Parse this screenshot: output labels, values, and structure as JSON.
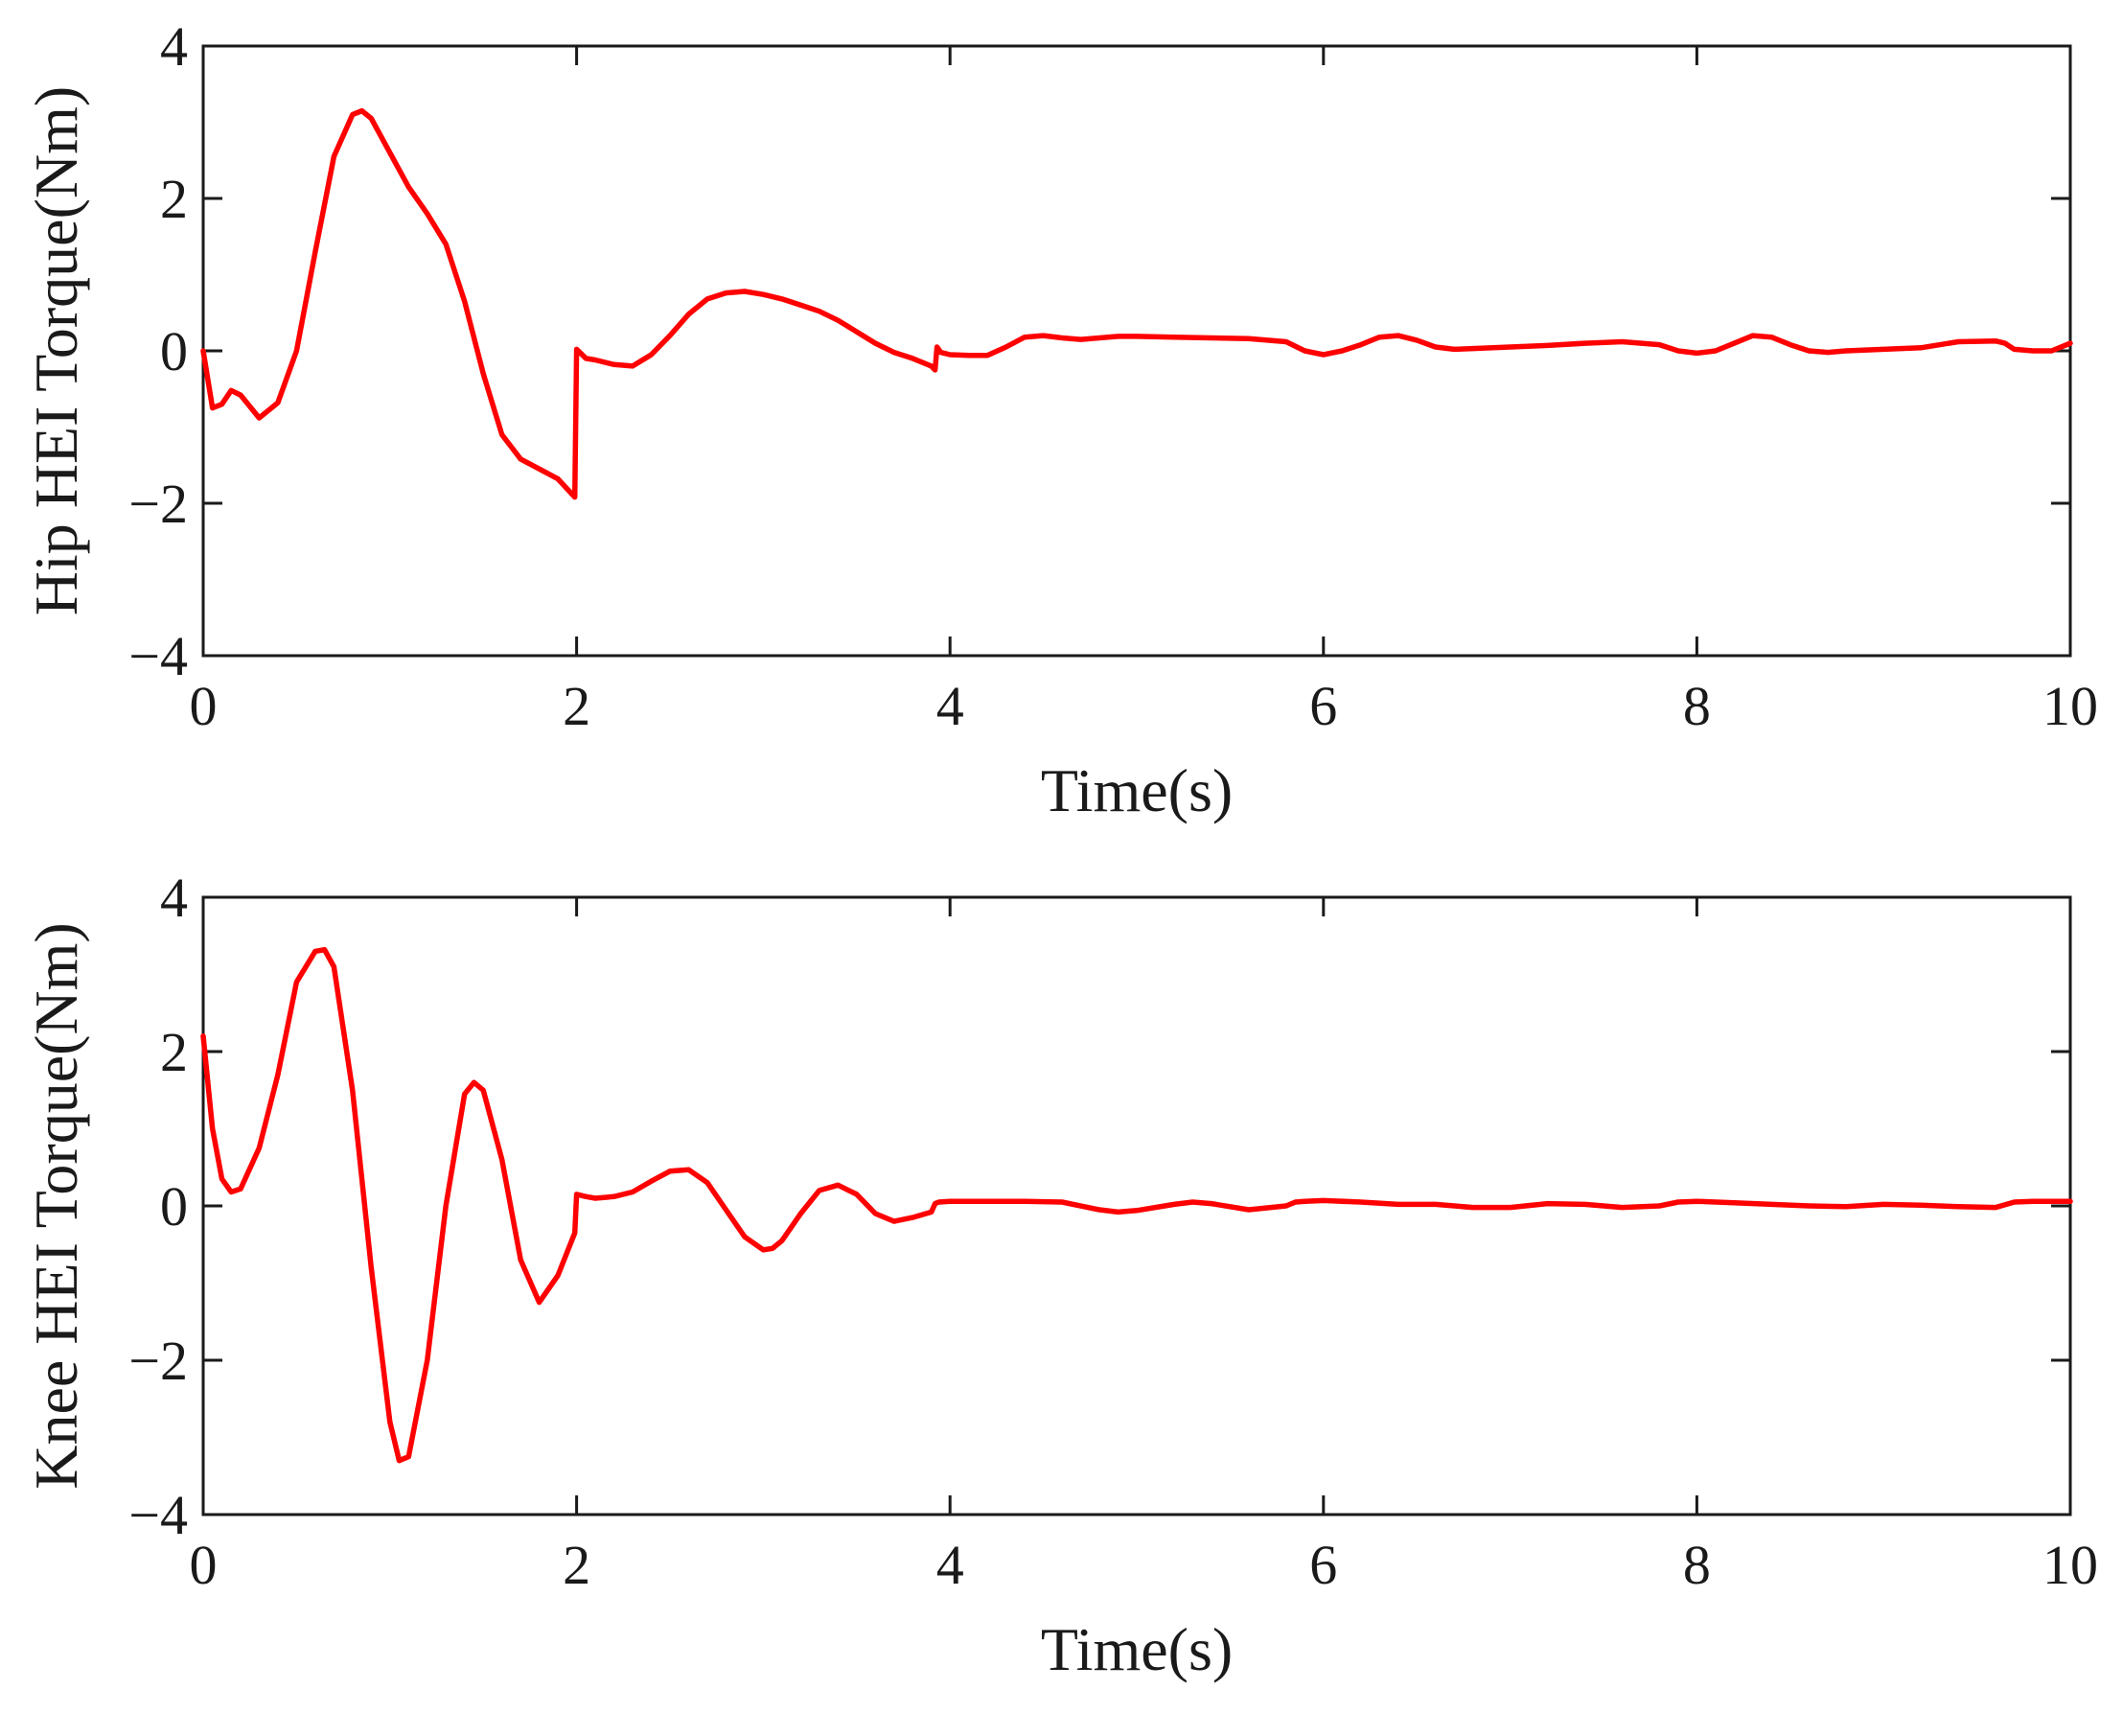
{
  "chart_data": [
    {
      "type": "line",
      "title": "",
      "xlabel": "Time(s)",
      "ylabel": "Hip HEI Torque(Nm)",
      "xlim": [
        0,
        10
      ],
      "ylim": [
        -4,
        4
      ],
      "xticks": [
        "0",
        "2",
        "4",
        "6",
        "8",
        "10"
      ],
      "yticks": [
        "4",
        "2",
        "0",
        "−2",
        "−4"
      ],
      "grid": false,
      "color": "#ff0000",
      "series": [
        {
          "x": [
            0,
            0.05,
            0.1,
            0.15,
            0.2,
            0.3,
            0.4,
            0.5,
            0.6,
            0.7,
            0.8,
            0.85,
            0.9,
            1.0,
            1.1,
            1.2,
            1.3,
            1.4,
            1.5,
            1.6,
            1.7,
            1.8,
            1.9,
            1.99,
            2.0,
            2.05,
            2.1,
            2.2,
            2.3,
            2.4,
            2.5,
            2.6,
            2.7,
            2.8,
            2.9,
            3.0,
            3.1,
            3.2,
            3.3,
            3.4,
            3.5,
            3.6,
            3.7,
            3.8,
            3.9,
            3.92,
            3.93,
            3.95,
            4.0,
            4.1,
            4.2,
            4.3,
            4.4,
            4.5,
            4.6,
            4.7,
            4.8,
            4.9,
            5.0,
            5.2,
            5.4,
            5.6,
            5.8,
            5.9,
            6.0,
            6.1,
            6.2,
            6.3,
            6.4,
            6.5,
            6.6,
            6.7,
            6.8,
            7.0,
            7.2,
            7.4,
            7.6,
            7.8,
            7.9,
            8.0,
            8.1,
            8.2,
            8.3,
            8.4,
            8.5,
            8.6,
            8.7,
            8.8,
            9.0,
            9.2,
            9.4,
            9.6,
            9.65,
            9.7,
            9.8,
            9.9,
            10.0
          ],
          "y": [
            0.0,
            -0.75,
            -0.7,
            -0.52,
            -0.58,
            -0.88,
            -0.68,
            0.0,
            1.3,
            2.55,
            3.1,
            3.15,
            3.05,
            2.6,
            2.15,
            1.8,
            1.4,
            0.65,
            -0.3,
            -1.1,
            -1.42,
            -1.55,
            -1.68,
            -1.92,
            0.02,
            -0.1,
            -0.12,
            -0.18,
            -0.2,
            -0.05,
            0.2,
            0.48,
            0.68,
            0.76,
            0.78,
            0.74,
            0.68,
            0.6,
            0.52,
            0.4,
            0.25,
            0.1,
            -0.02,
            -0.1,
            -0.2,
            -0.25,
            0.05,
            -0.02,
            -0.05,
            -0.06,
            -0.06,
            0.05,
            0.18,
            0.2,
            0.17,
            0.15,
            0.17,
            0.19,
            0.19,
            0.18,
            0.17,
            0.16,
            0.12,
            0.0,
            -0.05,
            0.0,
            0.08,
            0.18,
            0.2,
            0.14,
            0.05,
            0.02,
            0.03,
            0.05,
            0.07,
            0.1,
            0.12,
            0.08,
            0.0,
            -0.03,
            0.0,
            0.1,
            0.2,
            0.18,
            0.08,
            0.0,
            -0.02,
            0.0,
            0.02,
            0.04,
            0.12,
            0.13,
            0.1,
            0.02,
            0.0,
            0.0,
            0.1
          ]
        }
      ]
    },
    {
      "type": "line",
      "title": "",
      "xlabel": "Time(s)",
      "ylabel": "Knee HEI Torque(Nm)",
      "xlim": [
        0,
        10
      ],
      "ylim": [
        -4,
        4
      ],
      "xticks": [
        "0",
        "2",
        "4",
        "6",
        "8",
        "10"
      ],
      "yticks": [
        "4",
        "2",
        "0",
        "−2",
        "−4"
      ],
      "grid": false,
      "color": "#ff0000",
      "series": [
        {
          "x": [
            0,
            0.05,
            0.1,
            0.15,
            0.2,
            0.3,
            0.4,
            0.5,
            0.6,
            0.65,
            0.7,
            0.8,
            0.9,
            1.0,
            1.05,
            1.1,
            1.2,
            1.3,
            1.4,
            1.45,
            1.5,
            1.6,
            1.7,
            1.8,
            1.9,
            1.99,
            2.0,
            2.05,
            2.1,
            2.2,
            2.3,
            2.4,
            2.5,
            2.6,
            2.7,
            2.8,
            2.9,
            3.0,
            3.05,
            3.1,
            3.2,
            3.3,
            3.4,
            3.5,
            3.6,
            3.7,
            3.8,
            3.9,
            3.92,
            3.94,
            4.0,
            4.2,
            4.4,
            4.6,
            4.8,
            4.9,
            5.0,
            5.2,
            5.3,
            5.4,
            5.6,
            5.8,
            5.85,
            5.9,
            6.0,
            6.2,
            6.4,
            6.6,
            6.8,
            7.0,
            7.2,
            7.4,
            7.6,
            7.8,
            7.9,
            8.0,
            8.2,
            8.4,
            8.6,
            8.8,
            9.0,
            9.2,
            9.4,
            9.6,
            9.7,
            9.8,
            10.0
          ],
          "y": [
            2.2,
            1.0,
            0.35,
            0.18,
            0.22,
            0.75,
            1.7,
            2.9,
            3.3,
            3.32,
            3.1,
            1.5,
            -0.8,
            -2.8,
            -3.3,
            -3.25,
            -2.0,
            0.0,
            1.45,
            1.6,
            1.5,
            0.6,
            -0.7,
            -1.25,
            -0.9,
            -0.35,
            0.15,
            0.12,
            0.1,
            0.12,
            0.18,
            0.32,
            0.45,
            0.47,
            0.3,
            -0.05,
            -0.4,
            -0.57,
            -0.55,
            -0.45,
            -0.1,
            0.2,
            0.27,
            0.15,
            -0.1,
            -0.2,
            -0.15,
            -0.08,
            0.03,
            0.05,
            0.06,
            0.06,
            0.06,
            0.05,
            -0.05,
            -0.08,
            -0.06,
            0.02,
            0.05,
            0.03,
            -0.05,
            0.0,
            0.05,
            0.06,
            0.07,
            0.05,
            0.02,
            0.02,
            -0.02,
            -0.02,
            0.03,
            0.02,
            -0.02,
            0.0,
            0.05,
            0.06,
            0.04,
            0.02,
            0.0,
            -0.01,
            0.02,
            0.01,
            -0.01,
            -0.02,
            0.05,
            0.06,
            0.06
          ]
        }
      ]
    }
  ]
}
